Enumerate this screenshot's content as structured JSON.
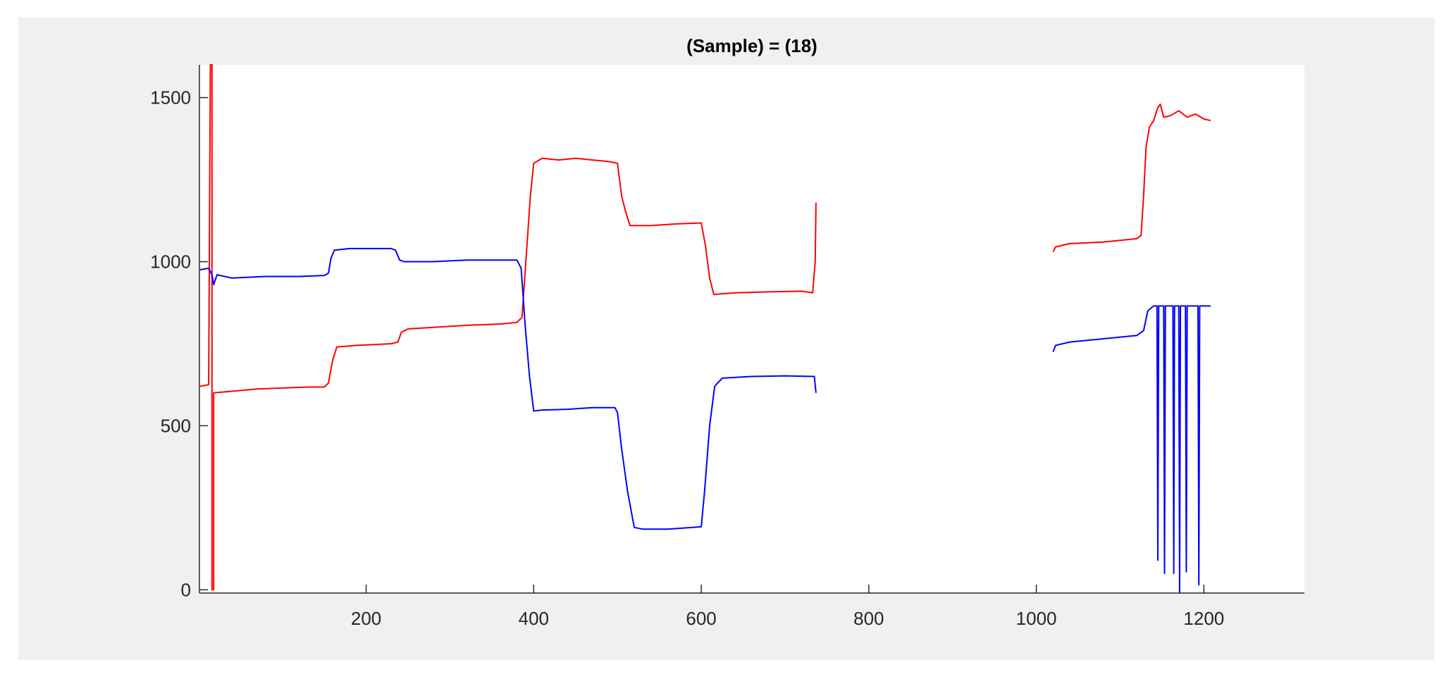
{
  "colors": {
    "figure_background": "#f0f0f0",
    "axes_background": "#ffffff",
    "axis_color": "#262626",
    "series_red": "#ff0000",
    "series_blue": "#0000ff"
  },
  "chart_data": {
    "type": "line",
    "title": "(Sample) = (18)",
    "xlabel": "",
    "ylabel": "",
    "xlim": [
      1,
      1320
    ],
    "ylim": [
      -10,
      1600
    ],
    "x_ticks": [
      200,
      400,
      600,
      800,
      1000,
      1200
    ],
    "y_ticks": [
      0,
      500,
      1000,
      1500
    ],
    "x_tick_labels": [
      "200",
      "400",
      "600",
      "800",
      "1000",
      "1200"
    ],
    "y_tick_labels": [
      "0",
      "500",
      "1000",
      "1500"
    ],
    "grid": false,
    "legend": "none",
    "series": [
      {
        "color": "#ff0000",
        "segments": [
          [
            [
              1,
              620
            ],
            [
              12,
              625
            ],
            [
              14,
              1600
            ],
            [
              16,
              1600
            ],
            [
              16,
              0
            ],
            [
              18,
              0
            ],
            [
              18,
              600
            ],
            [
              40,
              605
            ],
            [
              70,
              612
            ],
            [
              100,
              615
            ],
            [
              130,
              618
            ],
            [
              150,
              618
            ],
            [
              155,
              630
            ],
            [
              160,
              700
            ],
            [
              165,
              740
            ],
            [
              190,
              745
            ],
            [
              230,
              750
            ],
            [
              238,
              755
            ],
            [
              242,
              785
            ],
            [
              250,
              795
            ],
            [
              280,
              800
            ],
            [
              320,
              806
            ],
            [
              360,
              810
            ],
            [
              380,
              815
            ],
            [
              386,
              830
            ],
            [
              392,
              1050
            ],
            [
              396,
              1200
            ],
            [
              400,
              1300
            ],
            [
              410,
              1315
            ],
            [
              430,
              1310
            ],
            [
              450,
              1315
            ],
            [
              470,
              1310
            ],
            [
              490,
              1305
            ],
            [
              500,
              1300
            ],
            [
              505,
              1200
            ],
            [
              510,
              1150
            ],
            [
              515,
              1110
            ],
            [
              540,
              1110
            ],
            [
              570,
              1115
            ],
            [
              600,
              1118
            ],
            [
              605,
              1050
            ],
            [
              610,
              950
            ],
            [
              615,
              900
            ],
            [
              640,
              905
            ],
            [
              680,
              908
            ],
            [
              720,
              910
            ],
            [
              733,
              905
            ],
            [
              736,
              1000
            ],
            [
              737,
              1180
            ]
          ],
          [
            [
              1020,
              1030
            ],
            [
              1023,
              1045
            ],
            [
              1040,
              1055
            ],
            [
              1080,
              1060
            ],
            [
              1120,
              1070
            ],
            [
              1125,
              1080
            ],
            [
              1128,
              1200
            ],
            [
              1131,
              1350
            ],
            [
              1135,
              1410
            ],
            [
              1140,
              1430
            ],
            [
              1145,
              1470
            ],
            [
              1148,
              1480
            ],
            [
              1152,
              1440
            ],
            [
              1160,
              1445
            ],
            [
              1170,
              1460
            ],
            [
              1180,
              1440
            ],
            [
              1190,
              1450
            ],
            [
              1200,
              1435
            ],
            [
              1208,
              1430
            ]
          ]
        ]
      },
      {
        "color": "#0000ff",
        "segments": [
          [
            [
              1,
              975
            ],
            [
              12,
              980
            ],
            [
              16,
              960
            ],
            [
              18,
              930
            ],
            [
              22,
              960
            ],
            [
              40,
              950
            ],
            [
              80,
              955
            ],
            [
              120,
              955
            ],
            [
              150,
              958
            ],
            [
              155,
              965
            ],
            [
              158,
              1010
            ],
            [
              162,
              1035
            ],
            [
              180,
              1040
            ],
            [
              200,
              1040
            ],
            [
              230,
              1040
            ],
            [
              235,
              1035
            ],
            [
              240,
              1005
            ],
            [
              245,
              1000
            ],
            [
              280,
              1000
            ],
            [
              320,
              1005
            ],
            [
              360,
              1005
            ],
            [
              380,
              1005
            ],
            [
              385,
              980
            ],
            [
              390,
              800
            ],
            [
              395,
              650
            ],
            [
              400,
              545
            ],
            [
              410,
              548
            ],
            [
              440,
              550
            ],
            [
              470,
              555
            ],
            [
              497,
              555
            ],
            [
              500,
              540
            ],
            [
              505,
              430
            ],
            [
              512,
              300
            ],
            [
              520,
              190
            ],
            [
              530,
              185
            ],
            [
              560,
              185
            ],
            [
              590,
              190
            ],
            [
              600,
              192
            ],
            [
              604,
              300
            ],
            [
              610,
              500
            ],
            [
              616,
              620
            ],
            [
              625,
              645
            ],
            [
              660,
              650
            ],
            [
              700,
              652
            ],
            [
              735,
              650
            ],
            [
              737,
              600
            ]
          ],
          [
            [
              1020,
              725
            ],
            [
              1023,
              745
            ],
            [
              1040,
              755
            ],
            [
              1080,
              765
            ],
            [
              1120,
              775
            ],
            [
              1128,
              790
            ],
            [
              1133,
              850
            ],
            [
              1140,
              865
            ],
            [
              1144,
              865
            ],
            [
              1145,
              90
            ],
            [
              1146,
              865
            ],
            [
              1152,
              865
            ],
            [
              1153,
              50
            ],
            [
              1154,
              865
            ],
            [
              1163,
              865
            ],
            [
              1164,
              50
            ],
            [
              1165,
              865
            ],
            [
              1170,
              865
            ],
            [
              1171,
              -10
            ],
            [
              1172,
              865
            ],
            [
              1178,
              865
            ],
            [
              1179,
              55
            ],
            [
              1180,
              865
            ],
            [
              1193,
              865
            ],
            [
              1194,
              15
            ],
            [
              1195,
              865
            ],
            [
              1208,
              865
            ]
          ]
        ]
      }
    ]
  }
}
